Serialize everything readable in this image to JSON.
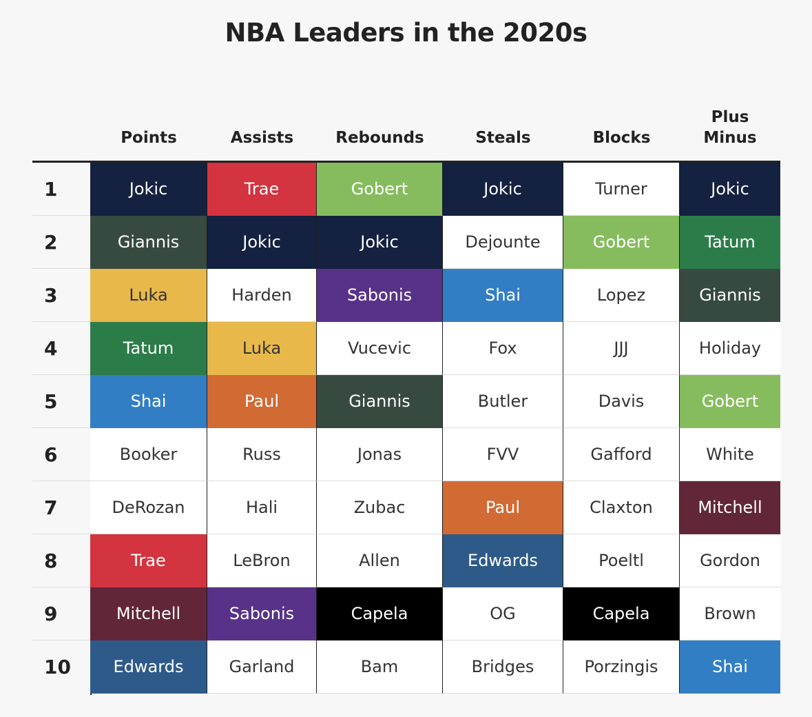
{
  "chart_data": {
    "type": "table",
    "title": "NBA Leaders in the 2020s",
    "columns": [
      {
        "label": "Points"
      },
      {
        "label": "Assists"
      },
      {
        "label": "Rebounds"
      },
      {
        "label": "Steals"
      },
      {
        "label": "Blocks"
      },
      {
        "label": "Plus\nMinus"
      }
    ],
    "ranks": [
      "1",
      "2",
      "3",
      "4",
      "5",
      "6",
      "7",
      "8",
      "9",
      "10"
    ],
    "rows": [
      [
        {
          "name": "Jokic",
          "bg": "#142140",
          "fg": "#ffffff"
        },
        {
          "name": "Trae",
          "bg": "#d3343f",
          "fg": "#ffffff"
        },
        {
          "name": "Gobert",
          "bg": "#87bc5e",
          "fg": "#ffffff"
        },
        {
          "name": "Jokic",
          "bg": "#142140",
          "fg": "#ffffff"
        },
        {
          "name": "Turner",
          "bg": "#ffffff",
          "fg": "#333333"
        },
        {
          "name": "Jokic",
          "bg": "#142140",
          "fg": "#ffffff"
        }
      ],
      [
        {
          "name": "Giannis",
          "bg": "#374a40",
          "fg": "#ffffff"
        },
        {
          "name": "Jokic",
          "bg": "#142140",
          "fg": "#ffffff"
        },
        {
          "name": "Jokic",
          "bg": "#142140",
          "fg": "#ffffff"
        },
        {
          "name": "Dejounte",
          "bg": "#ffffff",
          "fg": "#333333"
        },
        {
          "name": "Gobert",
          "bg": "#87bc5e",
          "fg": "#ffffff"
        },
        {
          "name": "Tatum",
          "bg": "#2c7c49",
          "fg": "#ffffff"
        }
      ],
      [
        {
          "name": "Luka",
          "bg": "#e8b84a",
          "fg": "#333333"
        },
        {
          "name": "Harden",
          "bg": "#ffffff",
          "fg": "#333333"
        },
        {
          "name": "Sabonis",
          "bg": "#583289",
          "fg": "#ffffff"
        },
        {
          "name": "Shai",
          "bg": "#327ec4",
          "fg": "#ffffff"
        },
        {
          "name": "Lopez",
          "bg": "#ffffff",
          "fg": "#333333"
        },
        {
          "name": "Giannis",
          "bg": "#374a40",
          "fg": "#ffffff"
        }
      ],
      [
        {
          "name": "Tatum",
          "bg": "#2c7c49",
          "fg": "#ffffff"
        },
        {
          "name": "Luka",
          "bg": "#e8b84a",
          "fg": "#333333"
        },
        {
          "name": "Vucevic",
          "bg": "#ffffff",
          "fg": "#333333"
        },
        {
          "name": "Fox",
          "bg": "#ffffff",
          "fg": "#333333"
        },
        {
          "name": "JJJ",
          "bg": "#ffffff",
          "fg": "#333333"
        },
        {
          "name": "Holiday",
          "bg": "#ffffff",
          "fg": "#333333"
        }
      ],
      [
        {
          "name": "Shai",
          "bg": "#327ec4",
          "fg": "#ffffff"
        },
        {
          "name": "Paul",
          "bg": "#d26a34",
          "fg": "#ffffff"
        },
        {
          "name": "Giannis",
          "bg": "#374a40",
          "fg": "#ffffff"
        },
        {
          "name": "Butler",
          "bg": "#ffffff",
          "fg": "#333333"
        },
        {
          "name": "Davis",
          "bg": "#ffffff",
          "fg": "#333333"
        },
        {
          "name": "Gobert",
          "bg": "#87bc5e",
          "fg": "#ffffff"
        }
      ],
      [
        {
          "name": "Booker",
          "bg": "#ffffff",
          "fg": "#333333"
        },
        {
          "name": "Russ",
          "bg": "#ffffff",
          "fg": "#333333"
        },
        {
          "name": "Jonas",
          "bg": "#ffffff",
          "fg": "#333333"
        },
        {
          "name": "FVV",
          "bg": "#ffffff",
          "fg": "#333333"
        },
        {
          "name": "Gafford",
          "bg": "#ffffff",
          "fg": "#333333"
        },
        {
          "name": "White",
          "bg": "#ffffff",
          "fg": "#333333"
        }
      ],
      [
        {
          "name": "DeRozan",
          "bg": "#ffffff",
          "fg": "#333333"
        },
        {
          "name": "Hali",
          "bg": "#ffffff",
          "fg": "#333333"
        },
        {
          "name": "Zubac",
          "bg": "#ffffff",
          "fg": "#333333"
        },
        {
          "name": "Paul",
          "bg": "#d26a34",
          "fg": "#ffffff"
        },
        {
          "name": "Claxton",
          "bg": "#ffffff",
          "fg": "#333333"
        },
        {
          "name": "Mitchell",
          "bg": "#622639",
          "fg": "#ffffff"
        }
      ],
      [
        {
          "name": "Trae",
          "bg": "#d3343f",
          "fg": "#ffffff"
        },
        {
          "name": "LeBron",
          "bg": "#ffffff",
          "fg": "#333333"
        },
        {
          "name": "Allen",
          "bg": "#ffffff",
          "fg": "#333333"
        },
        {
          "name": "Edwards",
          "bg": "#2e5a8a",
          "fg": "#ffffff"
        },
        {
          "name": "Poeltl",
          "bg": "#ffffff",
          "fg": "#333333"
        },
        {
          "name": "Gordon",
          "bg": "#ffffff",
          "fg": "#333333"
        }
      ],
      [
        {
          "name": "Mitchell",
          "bg": "#622639",
          "fg": "#ffffff"
        },
        {
          "name": "Sabonis",
          "bg": "#583289",
          "fg": "#ffffff"
        },
        {
          "name": "Capela",
          "bg": "#000000",
          "fg": "#ffffff"
        },
        {
          "name": "OG",
          "bg": "#ffffff",
          "fg": "#333333"
        },
        {
          "name": "Capela",
          "bg": "#000000",
          "fg": "#ffffff"
        },
        {
          "name": "Brown",
          "bg": "#ffffff",
          "fg": "#333333"
        }
      ],
      [
        {
          "name": "Edwards",
          "bg": "#2e5a8a",
          "fg": "#ffffff"
        },
        {
          "name": "Garland",
          "bg": "#ffffff",
          "fg": "#333333"
        },
        {
          "name": "Bam",
          "bg": "#ffffff",
          "fg": "#333333"
        },
        {
          "name": "Bridges",
          "bg": "#ffffff",
          "fg": "#333333"
        },
        {
          "name": "Porzingis",
          "bg": "#ffffff",
          "fg": "#333333"
        },
        {
          "name": "Shai",
          "bg": "#327ec4",
          "fg": "#ffffff"
        }
      ]
    ]
  }
}
